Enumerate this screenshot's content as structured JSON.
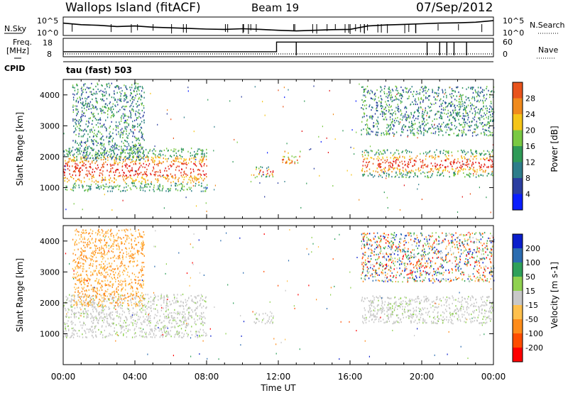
{
  "header": {
    "station": "Wallops Island (fitACF)",
    "beam": "Beam 19",
    "date": "07/Sep/2012"
  },
  "strip_labels": {
    "nsky": "N.Sky",
    "nsearch": "N.Search",
    "freq_line1": "Freq.",
    "freq_line2": "[MHz]",
    "nave": "Nave",
    "cpid": "CPID",
    "cpid_value": "tau (fast) 503"
  },
  "strip_ticks": {
    "noise_left": [
      "10^5",
      "10^0"
    ],
    "noise_right": [
      "10^5",
      "10^0"
    ],
    "freq_left": [
      "18",
      "8"
    ],
    "nave_right": [
      "60",
      "0"
    ]
  },
  "colors": {
    "power": [
      "#0a1eff",
      "#2b3ea0",
      "#2e7d8a",
      "#2f9a57",
      "#7ac943",
      "#f5c518",
      "#f08a1c",
      "#e8531c",
      "#e31a1c"
    ],
    "velocity": [
      "#ff0000",
      "#ff4d00",
      "#ff8c1a",
      "#ffc04d",
      "#c8c8c8",
      "#8fd14f",
      "#2fa05a",
      "#2b6cb0",
      "#0a1ecc"
    ]
  },
  "chart_data": [
    {
      "type": "line",
      "title": "",
      "series": [
        {
          "name": "N.Sky",
          "x": [
            0,
            1,
            2,
            3,
            4,
            5,
            6,
            7,
            8,
            9,
            10,
            11,
            12,
            13,
            14,
            15,
            16,
            17,
            18,
            19,
            20,
            21,
            22,
            23,
            24
          ],
          "y": [
            3.5,
            3.0,
            2.8,
            2.4,
            2.6,
            2.2,
            2.0,
            1.8,
            1.6,
            1.5,
            1.7,
            1.5,
            1.2,
            1.0,
            1.2,
            1.4,
            1.5,
            2.6,
            2.9,
            3.1,
            3.3,
            3.5,
            3.6,
            3.8,
            4.3
          ]
        },
        {
          "name": "N.Search",
          "x": [],
          "y": []
        }
      ],
      "ylim_left": [
        0,
        5
      ],
      "ylabel": "N.Sky"
    },
    {
      "type": "line",
      "series": [
        {
          "name": "Freq.",
          "x": [
            0,
            11.9,
            11.9,
            24
          ],
          "y": [
            10.3,
            10.3,
            16.5,
            16.5
          ]
        },
        {
          "name": "Nave",
          "x": [
            0,
            6,
            12,
            18,
            24
          ],
          "y": [
            8,
            8,
            9,
            10,
            10
          ]
        }
      ],
      "ylim_left": [
        8,
        18
      ],
      "ylim_right": [
        0,
        60
      ]
    },
    {
      "type": "heatmap",
      "quantity": "Power",
      "xlabel": "",
      "ylabel": "Slant Range [km]",
      "xlim": [
        0,
        24
      ],
      "ylim": [
        0,
        4500
      ],
      "colorbar_label": "Power [dB]",
      "colorbar_ticks": [
        "4",
        "8",
        "12",
        "16",
        "20",
        "24",
        "28"
      ],
      "features": [
        {
          "t0": 0.0,
          "t1": 8.0,
          "r0": 900,
          "r1": 2300,
          "level": "high"
        },
        {
          "t0": 0.5,
          "t1": 4.5,
          "r0": 1900,
          "r1": 4400,
          "level": "low"
        },
        {
          "t0": 10.6,
          "t1": 11.7,
          "r0": 1350,
          "r1": 1700,
          "level": "high"
        },
        {
          "t0": 12.2,
          "t1": 13.2,
          "r0": 1800,
          "r1": 2200,
          "level": "mid"
        },
        {
          "t0": 16.6,
          "t1": 24.0,
          "r0": 1350,
          "r1": 2250,
          "level": "high"
        },
        {
          "t0": 16.6,
          "t1": 24.0,
          "r0": 2700,
          "r1": 4300,
          "level": "low"
        }
      ]
    },
    {
      "type": "heatmap",
      "quantity": "Velocity",
      "xlabel": "Time UT",
      "ylabel": "Slant Range [km]",
      "xlim": [
        0,
        24
      ],
      "ylim": [
        0,
        4500
      ],
      "x_ticklabels": [
        "00:00",
        "04:00",
        "08:00",
        "12:00",
        "16:00",
        "20:00",
        "00:00"
      ],
      "y_ticklabels": [
        "1000",
        "2000",
        "3000",
        "4000"
      ],
      "colorbar_label": "Velocity [m s-1]",
      "colorbar_ticks": [
        "-200",
        "-100",
        "-50",
        "-15",
        "15",
        "50",
        "100",
        "200"
      ],
      "features": [
        {
          "t0": 0.0,
          "t1": 8.0,
          "r0": 900,
          "r1": 2300,
          "level": "ground"
        },
        {
          "t0": 0.5,
          "t1": 4.5,
          "r0": 1900,
          "r1": 4400,
          "level": "away"
        },
        {
          "t0": 10.6,
          "t1": 11.7,
          "r0": 1350,
          "r1": 1700,
          "level": "ground"
        },
        {
          "t0": 16.6,
          "t1": 24.0,
          "r0": 1350,
          "r1": 2250,
          "level": "ground"
        },
        {
          "t0": 16.6,
          "t1": 24.0,
          "r0": 2700,
          "r1": 4300,
          "level": "mixed"
        }
      ]
    }
  ]
}
